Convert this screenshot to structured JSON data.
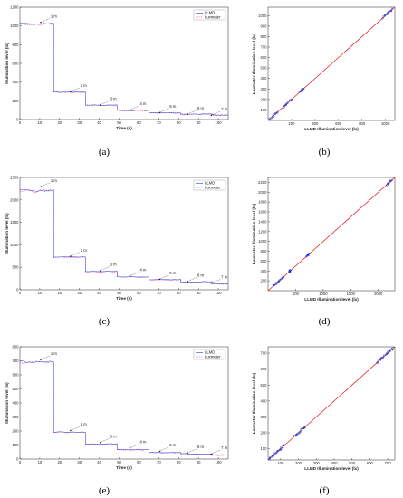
{
  "labels": [
    "(a)",
    "(b)",
    "(c)",
    "(d)",
    "(e)",
    "(f)"
  ],
  "colors": {
    "llmd": "#1f3fd8",
    "luxmeter": "#e53a8a",
    "fit": "#e01010",
    "points": "#1428d8",
    "axis": "#222222"
  },
  "chart_data": [
    {
      "type": "line",
      "panel": "a",
      "xlabel": "Time (s)",
      "ylabel": "Illumination level (lx)",
      "xlim": [
        0,
        105
      ],
      "ylim": [
        0,
        1200
      ],
      "xticks": [
        0,
        10,
        20,
        30,
        40,
        50,
        60,
        70,
        80,
        90,
        100
      ],
      "yticks": [
        0,
        200,
        400,
        600,
        800,
        1000,
        1200
      ],
      "legend": [
        "LLMD",
        "Luxmeter"
      ],
      "legend_position": "top-right",
      "steps": [
        {
          "x0": 0,
          "x1": 17,
          "y": 1020
        },
        {
          "x0": 17,
          "x1": 33,
          "y": 290
        },
        {
          "x0": 33,
          "x1": 49,
          "y": 150
        },
        {
          "x0": 49,
          "x1": 65,
          "y": 95
        },
        {
          "x0": 65,
          "x1": 81,
          "y": 70
        },
        {
          "x0": 81,
          "x1": 97,
          "y": 55
        },
        {
          "x0": 97,
          "x1": 105,
          "y": 45
        }
      ],
      "annotations": [
        {
          "text": "1 m",
          "x": 10,
          "y": 1040
        },
        {
          "text": "2 m",
          "x": 25,
          "y": 300
        },
        {
          "text": "3 m",
          "x": 40,
          "y": 160
        },
        {
          "text": "4 m",
          "x": 55,
          "y": 105
        },
        {
          "text": "5 m",
          "x": 70,
          "y": 78
        },
        {
          "text": "6 m",
          "x": 84,
          "y": 60
        },
        {
          "text": "7 m",
          "x": 96,
          "y": 48
        }
      ]
    },
    {
      "type": "scatter",
      "panel": "b",
      "xlabel": "LLMD Illumination level (lx)",
      "ylabel": "Luxmeter Illumination level (lx)",
      "xlim": [
        0,
        1080
      ],
      "ylim": [
        0,
        1080
      ],
      "xticks": [
        200,
        400,
        600,
        800,
        1000
      ],
      "yticks": [
        100,
        200,
        300,
        400,
        500,
        600,
        700,
        800,
        900,
        1000
      ],
      "clusters": [
        {
          "from": 20,
          "to": 80
        },
        {
          "from": 130,
          "to": 200
        },
        {
          "from": 270,
          "to": 300
        },
        {
          "from": 980,
          "to": 1060
        }
      ]
    },
    {
      "type": "line",
      "panel": "c",
      "xlabel": "Time (s)",
      "ylabel": "Illumination level (lx)",
      "xlim": [
        0,
        105
      ],
      "ylim": [
        0,
        2500
      ],
      "xticks": [
        0,
        10,
        20,
        30,
        40,
        50,
        60,
        70,
        80,
        90,
        100
      ],
      "yticks": [
        0,
        500,
        1000,
        1500,
        2000,
        2500
      ],
      "legend": [
        "LLMD",
        "Luxmeter"
      ],
      "legend_position": "top-right",
      "steps": [
        {
          "x0": 0,
          "x1": 17,
          "y": 2200
        },
        {
          "x0": 17,
          "x1": 33,
          "y": 720
        },
        {
          "x0": 33,
          "x1": 49,
          "y": 400
        },
        {
          "x0": 49,
          "x1": 65,
          "y": 280
        },
        {
          "x0": 65,
          "x1": 81,
          "y": 220
        },
        {
          "x0": 81,
          "x1": 97,
          "y": 170
        },
        {
          "x0": 97,
          "x1": 105,
          "y": 130
        }
      ],
      "annotations": [
        {
          "text": "1 m",
          "x": 10,
          "y": 2300
        },
        {
          "text": "2 m",
          "x": 25,
          "y": 750
        },
        {
          "text": "3 m",
          "x": 40,
          "y": 430
        },
        {
          "text": "4 m",
          "x": 55,
          "y": 310
        },
        {
          "text": "5 m",
          "x": 70,
          "y": 240
        },
        {
          "text": "6 m",
          "x": 84,
          "y": 190
        },
        {
          "text": "7 m",
          "x": 96,
          "y": 150
        }
      ]
    },
    {
      "type": "scatter",
      "panel": "d",
      "xlabel": "LLMD Illumination level (lx)",
      "ylabel": "Luxmeter Illumination level (lx)",
      "xlim": [
        0,
        2300
      ],
      "ylim": [
        0,
        2300
      ],
      "xticks": [
        500,
        1000,
        1500,
        2000
      ],
      "yticks": [
        200,
        400,
        600,
        800,
        1000,
        1200,
        1400,
        1600,
        1800,
        2000,
        2200
      ],
      "clusters": [
        {
          "from": 100,
          "to": 280
        },
        {
          "from": 390,
          "to": 410
        },
        {
          "from": 700,
          "to": 740
        },
        {
          "from": 2150,
          "to": 2250
        }
      ]
    },
    {
      "type": "line",
      "panel": "e",
      "xlabel": "Time (s)",
      "ylabel": "Illumination level (lx)",
      "xlim": [
        0,
        105
      ],
      "ylim": [
        0,
        800
      ],
      "xticks": [
        0,
        10,
        20,
        30,
        40,
        50,
        60,
        70,
        80,
        90,
        100
      ],
      "yticks": [
        0,
        100,
        200,
        300,
        400,
        500,
        600,
        700,
        800
      ],
      "legend": [
        "LLMD",
        "Luxmeter"
      ],
      "legend_position": "top-right",
      "steps": [
        {
          "x0": 0,
          "x1": 17,
          "y": 690
        },
        {
          "x0": 17,
          "x1": 33,
          "y": 190
        },
        {
          "x0": 33,
          "x1": 49,
          "y": 105
        },
        {
          "x0": 49,
          "x1": 65,
          "y": 65
        },
        {
          "x0": 65,
          "x1": 81,
          "y": 45
        },
        {
          "x0": 81,
          "x1": 97,
          "y": 35
        },
        {
          "x0": 97,
          "x1": 105,
          "y": 28
        }
      ],
      "annotations": [
        {
          "text": "1 m",
          "x": 10,
          "y": 710
        },
        {
          "text": "2 m",
          "x": 25,
          "y": 205
        },
        {
          "text": "3 m",
          "x": 40,
          "y": 120
        },
        {
          "text": "4 m",
          "x": 55,
          "y": 80
        },
        {
          "text": "5 m",
          "x": 70,
          "y": 58
        },
        {
          "text": "6 m",
          "x": 84,
          "y": 45
        },
        {
          "text": "7 m",
          "x": 96,
          "y": 38
        }
      ]
    },
    {
      "type": "scatter",
      "panel": "f",
      "xlabel": "LLMD Illumination level (lx)",
      "ylabel": "Luxmeter Illumination level (lx)",
      "xlim": [
        30,
        740
      ],
      "ylim": [
        30,
        740
      ],
      "xticks": [
        100,
        200,
        300,
        400,
        500,
        600,
        700
      ],
      "yticks": [
        100,
        200,
        300,
        400,
        500,
        600,
        700
      ],
      "clusters": [
        {
          "from": 35,
          "to": 120
        },
        {
          "from": 180,
          "to": 240
        },
        {
          "from": 640,
          "to": 730
        }
      ]
    }
  ]
}
